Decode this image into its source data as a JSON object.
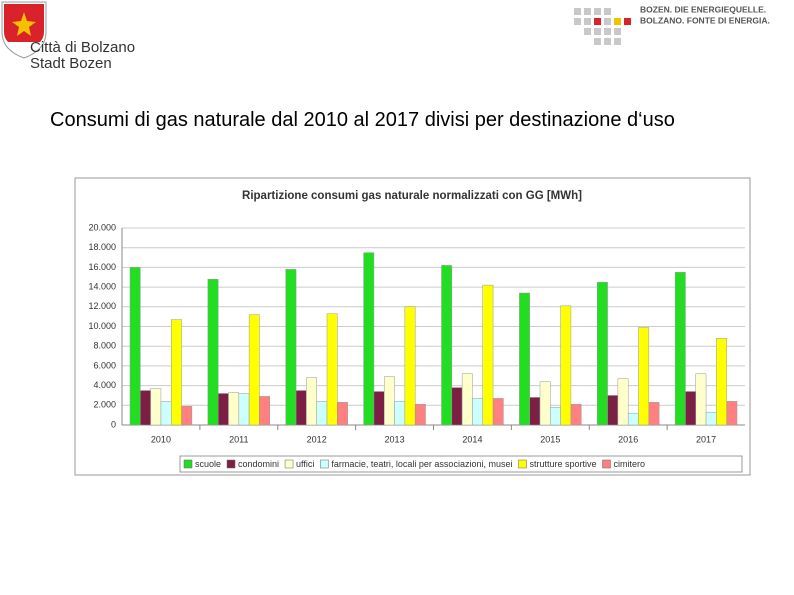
{
  "header": {
    "city_it": "Città di Bolzano",
    "city_de": "Stadt Bozen",
    "slogan_de": "BOZEN. DIE ENERGIEQUELLE.",
    "slogan_it": "BOLZANO. FONTE DI ENERGIA."
  },
  "heading": "Consumi di gas naturale dal 2010 al 2017 divisi per destinazione d‘uso",
  "chart_data": {
    "type": "bar",
    "title": "Ripartizione consumi gas naturale normalizzati con GG [MWh]",
    "categories": [
      "2010",
      "2011",
      "2012",
      "2013",
      "2014",
      "2015",
      "2016",
      "2017"
    ],
    "series": [
      {
        "name": "scuole",
        "color": "#22dd22",
        "values": [
          16000,
          14800,
          15800,
          17500,
          16200,
          13400,
          14500,
          15500
        ]
      },
      {
        "name": "condomini",
        "color": "#7b1f45",
        "values": [
          3500,
          3200,
          3500,
          3400,
          3800,
          2800,
          3000,
          3400
        ]
      },
      {
        "name": "uffici",
        "color": "#ffffcc",
        "values": [
          3700,
          3300,
          4800,
          4900,
          5200,
          4400,
          4700,
          5200
        ]
      },
      {
        "name": "farmacie, teatri, locali per associazioni, musei",
        "color": "#ccffff",
        "values": [
          2400,
          3200,
          2400,
          2400,
          2700,
          1800,
          1200,
          1300
        ]
      },
      {
        "name": "strutture sportive",
        "color": "#ffff00",
        "values": [
          10700,
          11200,
          11300,
          12000,
          14200,
          12100,
          9900,
          8800
        ]
      },
      {
        "name": "cimitero",
        "color": "#ff8080",
        "values": [
          1900,
          2900,
          2300,
          2100,
          2700,
          2100,
          2300,
          2400
        ]
      }
    ],
    "ylim": [
      0,
      20000
    ],
    "yticks": [
      0,
      {
        "value": 2000,
        "label": "2.000"
      },
      {
        "value": 4000,
        "label": "4.000"
      },
      {
        "value": 6000,
        "label": "6.000"
      },
      {
        "value": 8000,
        "label": "8.000"
      },
      {
        "value": 10000,
        "label": "10.000"
      },
      {
        "value": 12000,
        "label": "12.000"
      },
      {
        "value": 14000,
        "label": "14.000"
      },
      {
        "value": 16000,
        "label": "16.000"
      },
      {
        "value": 18000,
        "label": "18.000"
      },
      {
        "value": 20000,
        "label": "20.000"
      }
    ],
    "grid": true
  }
}
